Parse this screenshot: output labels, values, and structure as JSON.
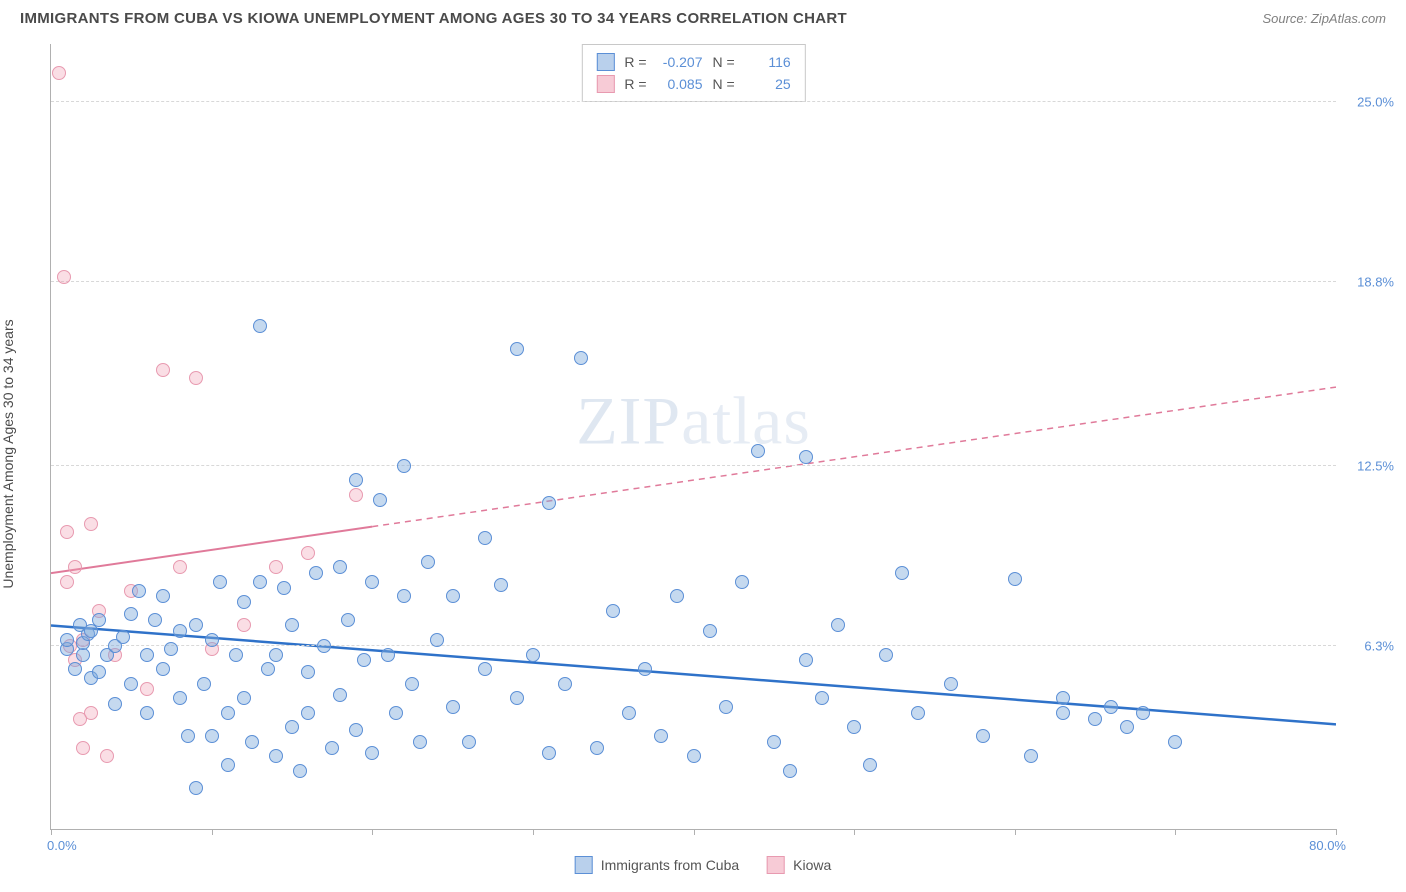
{
  "header": {
    "title": "IMMIGRANTS FROM CUBA VS KIOWA UNEMPLOYMENT AMONG AGES 30 TO 34 YEARS CORRELATION CHART",
    "source": "Source: ZipAtlas.com"
  },
  "chart": {
    "type": "scatter",
    "ylabel": "Unemployment Among Ages 30 to 34 years",
    "x_min_label": "0.0%",
    "x_max_label": "80.0%",
    "xlim": [
      0,
      80
    ],
    "ylim": [
      0,
      27
    ],
    "y_ticks": [
      {
        "value": 6.3,
        "label": "6.3%"
      },
      {
        "value": 12.5,
        "label": "12.5%"
      },
      {
        "value": 18.8,
        "label": "18.8%"
      },
      {
        "value": 25.0,
        "label": "25.0%"
      }
    ],
    "x_ticks": [
      0,
      10,
      20,
      30,
      40,
      50,
      60,
      70,
      80
    ],
    "background_color": "#ffffff",
    "grid_color": "#d8d8d8",
    "axis_color": "#b0b0b0",
    "label_color_blue": "#5b8fd6",
    "marker_radius": 7,
    "series": {
      "blue": {
        "name": "Immigrants from Cuba",
        "fill": "rgba(127,170,220,0.45)",
        "stroke": "#5b8fd6",
        "R": "-0.207",
        "N": "116",
        "trend": {
          "x1": 0,
          "y1": 7.0,
          "x2": 80,
          "y2": 3.6,
          "color": "#2f72c9",
          "width": 2.5,
          "dash": "none"
        },
        "points": [
          [
            1,
            6.2
          ],
          [
            1,
            6.5
          ],
          [
            1.5,
            5.5
          ],
          [
            1.8,
            7.0
          ],
          [
            2,
            6.0
          ],
          [
            2,
            6.4
          ],
          [
            2.3,
            6.7
          ],
          [
            2.5,
            5.2
          ],
          [
            2.5,
            6.8
          ],
          [
            3,
            7.2
          ],
          [
            3,
            5.4
          ],
          [
            3.5,
            6.0
          ],
          [
            4,
            6.3
          ],
          [
            4,
            4.3
          ],
          [
            4.5,
            6.6
          ],
          [
            5,
            7.4
          ],
          [
            5,
            5.0
          ],
          [
            5.5,
            8.2
          ],
          [
            6,
            6.0
          ],
          [
            6,
            4.0
          ],
          [
            6.5,
            7.2
          ],
          [
            7,
            8.0
          ],
          [
            7,
            5.5
          ],
          [
            7.5,
            6.2
          ],
          [
            8,
            4.5
          ],
          [
            8,
            6.8
          ],
          [
            8.5,
            3.2
          ],
          [
            9,
            7.0
          ],
          [
            9,
            1.4
          ],
          [
            9.5,
            5.0
          ],
          [
            10,
            6.5
          ],
          [
            10,
            3.2
          ],
          [
            10.5,
            8.5
          ],
          [
            11,
            4.0
          ],
          [
            11,
            2.2
          ],
          [
            11.5,
            6.0
          ],
          [
            12,
            7.8
          ],
          [
            12,
            4.5
          ],
          [
            12.5,
            3.0
          ],
          [
            13,
            8.5
          ],
          [
            13,
            17.3
          ],
          [
            13.5,
            5.5
          ],
          [
            14,
            2.5
          ],
          [
            14,
            6.0
          ],
          [
            14.5,
            8.3
          ],
          [
            15,
            3.5
          ],
          [
            15,
            7.0
          ],
          [
            15.5,
            2.0
          ],
          [
            16,
            5.4
          ],
          [
            16,
            4.0
          ],
          [
            16.5,
            8.8
          ],
          [
            17,
            6.3
          ],
          [
            17.5,
            2.8
          ],
          [
            18,
            9.0
          ],
          [
            18,
            4.6
          ],
          [
            18.5,
            7.2
          ],
          [
            19,
            12.0
          ],
          [
            19,
            3.4
          ],
          [
            19.5,
            5.8
          ],
          [
            20,
            8.5
          ],
          [
            20,
            2.6
          ],
          [
            20.5,
            11.3
          ],
          [
            21,
            6.0
          ],
          [
            21.5,
            4.0
          ],
          [
            22,
            8.0
          ],
          [
            22,
            12.5
          ],
          [
            22.5,
            5.0
          ],
          [
            23,
            3.0
          ],
          [
            23.5,
            9.2
          ],
          [
            24,
            6.5
          ],
          [
            25,
            8.0
          ],
          [
            25,
            4.2
          ],
          [
            26,
            3.0
          ],
          [
            27,
            5.5
          ],
          [
            27,
            10.0
          ],
          [
            28,
            8.4
          ],
          [
            29,
            4.5
          ],
          [
            29,
            16.5
          ],
          [
            30,
            6.0
          ],
          [
            31,
            2.6
          ],
          [
            31,
            11.2
          ],
          [
            32,
            5.0
          ],
          [
            33,
            16.2
          ],
          [
            34,
            2.8
          ],
          [
            35,
            7.5
          ],
          [
            36,
            4.0
          ],
          [
            37,
            5.5
          ],
          [
            38,
            3.2
          ],
          [
            39,
            8.0
          ],
          [
            40,
            2.5
          ],
          [
            41,
            6.8
          ],
          [
            42,
            4.2
          ],
          [
            43,
            8.5
          ],
          [
            44,
            13.0
          ],
          [
            45,
            3.0
          ],
          [
            46,
            2.0
          ],
          [
            47,
            5.8
          ],
          [
            47,
            12.8
          ],
          [
            48,
            4.5
          ],
          [
            49,
            7.0
          ],
          [
            50,
            3.5
          ],
          [
            51,
            2.2
          ],
          [
            52,
            6.0
          ],
          [
            53,
            8.8
          ],
          [
            54,
            4.0
          ],
          [
            56,
            5.0
          ],
          [
            58,
            3.2
          ],
          [
            60,
            8.6
          ],
          [
            61,
            2.5
          ],
          [
            63,
            4.5
          ],
          [
            63,
            4.0
          ],
          [
            65,
            3.8
          ],
          [
            66,
            4.2
          ],
          [
            67,
            3.5
          ],
          [
            68,
            4.0
          ],
          [
            70,
            3.0
          ]
        ]
      },
      "pink": {
        "name": "Kiowa",
        "fill": "rgba(240,160,180,0.35)",
        "stroke": "#e89ab0",
        "R": "0.085",
        "N": "25",
        "trend": {
          "x1": 0,
          "y1": 8.8,
          "x2": 80,
          "y2": 15.2,
          "color": "#e07a9a",
          "width": 2,
          "dash_solid_until": 20
        },
        "points": [
          [
            0.5,
            26.0
          ],
          [
            0.8,
            19.0
          ],
          [
            1,
            10.2
          ],
          [
            1,
            8.5
          ],
          [
            1.2,
            6.3
          ],
          [
            1.5,
            9.0
          ],
          [
            1.5,
            5.8
          ],
          [
            1.8,
            3.8
          ],
          [
            2,
            6.5
          ],
          [
            2,
            2.8
          ],
          [
            2.5,
            10.5
          ],
          [
            2.5,
            4.0
          ],
          [
            3,
            7.5
          ],
          [
            3.5,
            2.5
          ],
          [
            4,
            6.0
          ],
          [
            5,
            8.2
          ],
          [
            6,
            4.8
          ],
          [
            7,
            15.8
          ],
          [
            8,
            9.0
          ],
          [
            9,
            15.5
          ],
          [
            10,
            6.2
          ],
          [
            12,
            7.0
          ],
          [
            14,
            9.0
          ],
          [
            16,
            9.5
          ],
          [
            19,
            11.5
          ]
        ]
      }
    },
    "stats_labels": {
      "R": "R =",
      "N": "N ="
    },
    "watermark": {
      "bold": "ZIP",
      "thin": "atlas"
    }
  },
  "legend": {
    "series1": "Immigrants from Cuba",
    "series2": "Kiowa"
  }
}
